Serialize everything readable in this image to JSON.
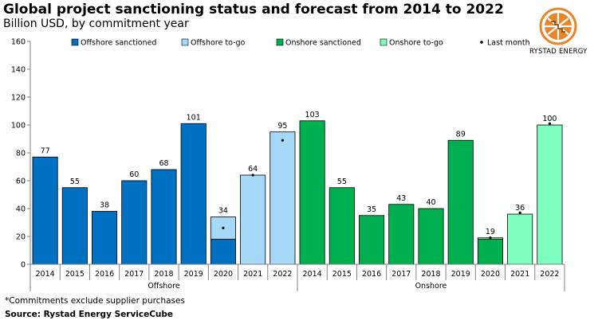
{
  "header": {
    "title": "Global project sanctioning status and forecast from 2014 to 2022",
    "subtitle": "Billion USD, by commitment year"
  },
  "logo": {
    "text": "RYSTAD ENERGY"
  },
  "footer": {
    "footnote": "*Commitments exclude supplier purchases",
    "source": "Source: Rystad Energy ServiceCube"
  },
  "colors": {
    "offshore_sanctioned": "#0070C0",
    "offshore_togo": "#A5D9F7",
    "onshore_sanctioned": "#00B050",
    "onshore_togo": "#7FFFBF",
    "axis": "#808080",
    "grid": "#d9d9d9",
    "logo_orange": "#E8862A"
  },
  "chart_data": {
    "type": "bar",
    "stacked": true,
    "title": "Global project sanctioning status and forecast from 2014 to 2022",
    "ylabel": "Billion USD, by commitment year",
    "ylim": [
      0,
      160
    ],
    "yticks": [
      0,
      20,
      40,
      60,
      80,
      100,
      120,
      140,
      160
    ],
    "legend": [
      {
        "key": "offshore_sanctioned",
        "label": "Offshore sanctioned"
      },
      {
        "key": "offshore_togo",
        "label": "Offshore to-go"
      },
      {
        "key": "onshore_sanctioned",
        "label": "Onshore sanctioned"
      },
      {
        "key": "onshore_togo",
        "label": "Onshore to-go"
      },
      {
        "key": "last_month",
        "label": "Last month"
      }
    ],
    "groups": [
      {
        "name": "Offshore",
        "categories": [
          "2014",
          "2015",
          "2016",
          "2017",
          "2018",
          "2019",
          "2020",
          "2021",
          "2022"
        ],
        "sanctioned": [
          77,
          55,
          38,
          60,
          68,
          101,
          18,
          0,
          0
        ],
        "to_go": [
          0,
          0,
          0,
          0,
          0,
          0,
          16,
          64,
          95
        ],
        "totals": [
          "77",
          "55",
          "38",
          "60",
          "68",
          "101",
          "34",
          "64",
          "95"
        ],
        "last_month": [
          null,
          null,
          null,
          null,
          null,
          null,
          26,
          64,
          89
        ]
      },
      {
        "name": "Onshore",
        "categories": [
          "2014",
          "2015",
          "2016",
          "2017",
          "2018",
          "2019",
          "2020",
          "2021",
          "2022"
        ],
        "sanctioned": [
          103,
          55,
          35,
          43,
          40,
          89,
          18,
          0,
          0
        ],
        "to_go": [
          0,
          0,
          0,
          0,
          0,
          0,
          1,
          36,
          100
        ],
        "totals": [
          "103",
          "55",
          "35",
          "43",
          "40",
          "89",
          "19",
          "36",
          "100"
        ],
        "last_month": [
          null,
          null,
          null,
          null,
          null,
          null,
          19,
          37,
          101
        ]
      }
    ]
  }
}
